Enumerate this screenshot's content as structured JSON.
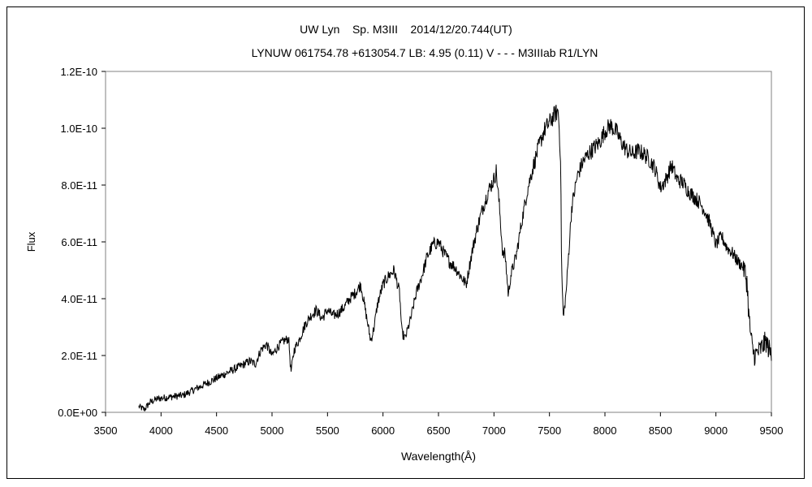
{
  "chart_data": {
    "type": "line",
    "title": "UW Lyn    Sp. M3III    2014/12/20.744(UT)",
    "subtitle": "LYNUW 061754.78 +613054.7 LB: 4.95 (0.11) V - - - M3IIIab R1/LYN",
    "xlabel": "Wavelength(Å)",
    "ylabel": "Flux",
    "xlim": [
      3500,
      9500
    ],
    "ylim": [
      0,
      1.2e-10
    ],
    "x_ticks": [
      3500,
      4000,
      4500,
      5000,
      5500,
      6000,
      6500,
      7000,
      7500,
      8000,
      8500,
      9000,
      9500
    ],
    "x_tick_labels": [
      "3500",
      "4000",
      "4500",
      "5000",
      "5500",
      "6000",
      "6500",
      "7000",
      "7500",
      "8000",
      "8500",
      "9000",
      "9500"
    ],
    "y_ticks": [
      0,
      2e-11,
      4e-11,
      6e-11,
      8e-11,
      1e-10,
      1.2e-10
    ],
    "y_tick_labels": [
      "0.0E+00",
      "2.0E-11",
      "4.0E-11",
      "6.0E-11",
      "8.0E-11",
      "1.0E-10",
      "1.2E-10"
    ],
    "grid": false,
    "legend": "none",
    "series": [
      {
        "color": "#000000",
        "x": [
          3800,
          3850,
          3900,
          3950,
          4000,
          4100,
          4200,
          4300,
          4400,
          4500,
          4600,
          4700,
          4800,
          4850,
          4900,
          4950,
          5000,
          5050,
          5100,
          5150,
          5170,
          5200,
          5250,
          5300,
          5350,
          5400,
          5450,
          5500,
          5550,
          5600,
          5650,
          5700,
          5750,
          5800,
          5850,
          5890,
          5920,
          5950,
          6000,
          6050,
          6100,
          6150,
          6170,
          6200,
          6250,
          6300,
          6350,
          6400,
          6450,
          6500,
          6550,
          6600,
          6650,
          6700,
          6750,
          6800,
          6850,
          6900,
          6950,
          7000,
          7020,
          7050,
          7080,
          7100,
          7130,
          7150,
          7200,
          7250,
          7300,
          7350,
          7400,
          7450,
          7500,
          7550,
          7580,
          7600,
          7610,
          7625,
          7650,
          7700,
          7750,
          7800,
          7850,
          7900,
          7950,
          8000,
          8050,
          8100,
          8150,
          8200,
          8250,
          8300,
          8350,
          8400,
          8450,
          8500,
          8550,
          8600,
          8650,
          8700,
          8750,
          8800,
          8850,
          8900,
          8950,
          9000,
          9050,
          9100,
          9150,
          9200,
          9250,
          9280,
          9300,
          9330,
          9350,
          9400,
          9450,
          9500
        ],
        "y": [
          2e-12,
          1e-12,
          3.5e-12,
          4.5e-12,
          5e-12,
          5.5e-12,
          6e-12,
          8e-12,
          1e-11,
          1.2e-11,
          1.4e-11,
          1.6e-11,
          1.8e-11,
          1.7e-11,
          2.2e-11,
          2.4e-11,
          2e-11,
          2.3e-11,
          2.5e-11,
          2.6e-11,
          1.4e-11,
          2.2e-11,
          2.6e-11,
          3.1e-11,
          3.4e-11,
          3.6e-11,
          3.3e-11,
          3.6e-11,
          3.4e-11,
          3.5e-11,
          3.7e-11,
          4e-11,
          4.2e-11,
          4.5e-11,
          3.4e-11,
          2.5e-11,
          3e-11,
          3.8e-11,
          4.5e-11,
          4.8e-11,
          5e-11,
          4.2e-11,
          2.8e-11,
          2.6e-11,
          3.3e-11,
          4.2e-11,
          4.8e-11,
          5.5e-11,
          5.9e-11,
          6e-11,
          5.6e-11,
          5.3e-11,
          5.1e-11,
          4.8e-11,
          4.5e-11,
          5.6e-11,
          6.5e-11,
          7.2e-11,
          7.8e-11,
          8.2e-11,
          8.5e-11,
          7.2e-11,
          5.5e-11,
          5.6e-11,
          4.1e-11,
          4.8e-11,
          5.5e-11,
          6.7e-11,
          7.8e-11,
          8.6e-11,
          9.3e-11,
          9.9e-11,
          1.02e-10,
          1.05e-10,
          1.06e-10,
          9e-11,
          5e-11,
          3.3e-11,
          4.2e-11,
          7.2e-11,
          8.3e-11,
          8.8e-11,
          9.1e-11,
          9.3e-11,
          9.5e-11,
          9.9e-11,
          1.01e-10,
          9.9e-11,
          9.5e-11,
          9.2e-11,
          9.1e-11,
          9.2e-11,
          9.1e-11,
          8.9e-11,
          8.6e-11,
          7.9e-11,
          8.2e-11,
          8.7e-11,
          8.2e-11,
          8.1e-11,
          7.8e-11,
          7.6e-11,
          7.4e-11,
          7.1e-11,
          6.6e-11,
          5.9e-11,
          6.2e-11,
          5.8e-11,
          5.6e-11,
          5.3e-11,
          5.1e-11,
          4.6e-11,
          3.2e-11,
          2.2e-11,
          2e-11,
          2.2e-11,
          2.5e-11,
          2e-11
        ]
      }
    ]
  }
}
